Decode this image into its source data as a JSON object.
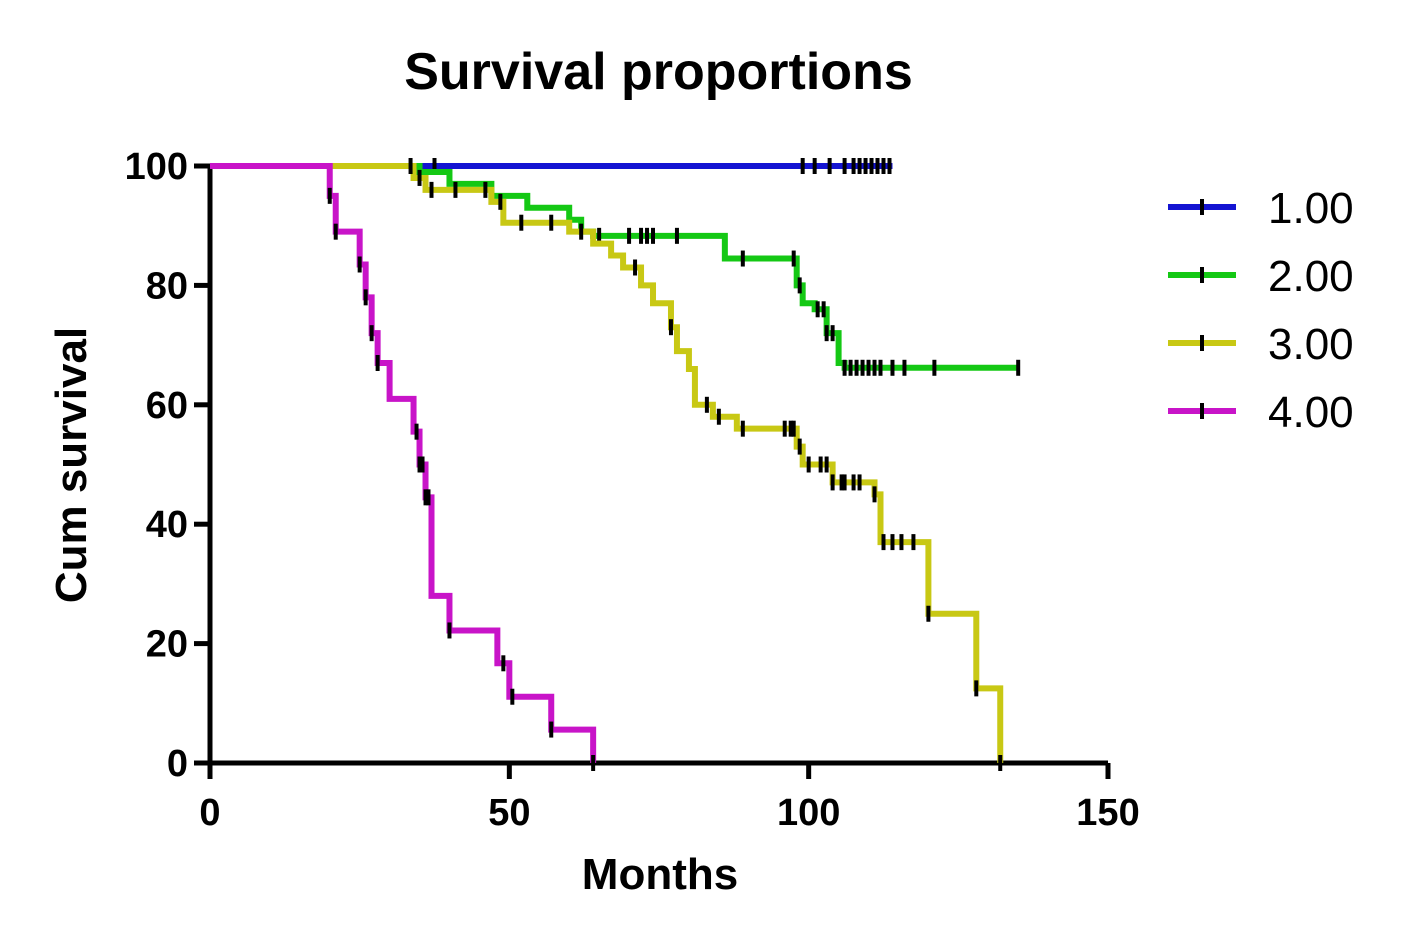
{
  "chart_data": {
    "type": "line",
    "title": "Survival proportions",
    "xlabel": "Months",
    "ylabel": "Cum survival",
    "xlim": [
      0,
      150
    ],
    "ylim": [
      0,
      100
    ],
    "x_ticks": [
      "0",
      "50",
      "100",
      "150"
    ],
    "y_ticks": [
      "0",
      "20",
      "40",
      "60",
      "80",
      "100"
    ],
    "grid": false,
    "legend_position": "right",
    "step": true,
    "series": [
      {
        "name": "1.00",
        "color": "#1414d2",
        "x": [
          0,
          114
        ],
        "y": [
          100,
          100
        ],
        "censor": [
          37.5,
          99,
          101,
          103.5,
          106,
          107.5,
          108.5,
          109.5,
          110.5,
          111.5,
          112.5,
          113.5
        ]
      },
      {
        "name": "2.00",
        "color": "#14c814",
        "x": [
          0,
          35,
          40,
          47,
          53,
          60,
          62,
          64,
          86,
          98,
          99,
          101,
          103,
          105,
          106,
          135
        ],
        "y": [
          100,
          99,
          97,
          95,
          93,
          91,
          89,
          88.3,
          84.5,
          80,
          77,
          76,
          72,
          67,
          66.2,
          66.2
        ],
        "censor": [
          65,
          70,
          72,
          73,
          74,
          78,
          89,
          97.5,
          98.5,
          101.5,
          102.5,
          103,
          104,
          106,
          107,
          108,
          109,
          110,
          111,
          112,
          114,
          116,
          121,
          135
        ]
      },
      {
        "name": "3.00",
        "color": "#c8c814",
        "x": [
          0,
          34,
          36,
          47,
          49,
          60,
          64,
          67,
          69,
          72,
          74,
          77,
          78,
          80,
          81,
          84,
          88,
          98,
          99,
          104,
          111,
          112,
          120,
          128,
          132
        ],
        "y": [
          100,
          98,
          96,
          94,
          90.5,
          89,
          87,
          85,
          83,
          80,
          77,
          73,
          69,
          66,
          60,
          58,
          56,
          53,
          50,
          47,
          45,
          37,
          25,
          12.5,
          0
        ],
        "censor": [
          33.5,
          35,
          37,
          41,
          46,
          48.5,
          52,
          57,
          62,
          71,
          77,
          83,
          85,
          89,
          96,
          97,
          97.5,
          98.5,
          100,
          102,
          103,
          104,
          105.5,
          106,
          107.5,
          108.5,
          111,
          112.5,
          114,
          115.5,
          117.5,
          120,
          128,
          132
        ]
      },
      {
        "name": "4.00",
        "color": "#c814c8",
        "x": [
          0,
          20,
          21,
          22,
          25,
          26,
          27,
          28,
          30,
          34,
          35,
          36,
          37,
          40,
          48,
          50,
          57,
          64
        ],
        "y": [
          100,
          95,
          89,
          89,
          83.5,
          78,
          72,
          67,
          61,
          55.5,
          50,
          44.5,
          28,
          22.2,
          16.7,
          11.1,
          5.6,
          0
        ],
        "censor": [
          20,
          21,
          25,
          26,
          27,
          28,
          34.5,
          35,
          35.5,
          36,
          36.5,
          40,
          49,
          50.5,
          57,
          64
        ]
      }
    ]
  }
}
